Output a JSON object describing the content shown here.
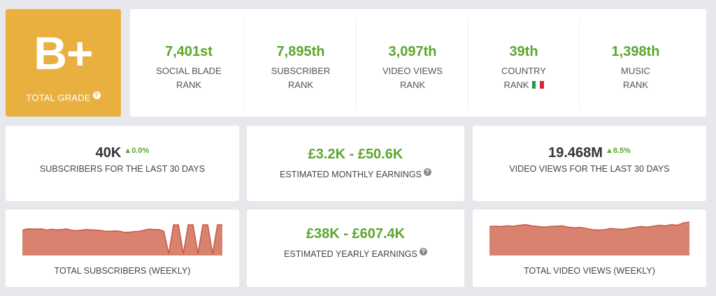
{
  "grade": {
    "letter": "B+",
    "label": "TOTAL GRADE",
    "help": "?"
  },
  "ranks": [
    {
      "value": "7,401st",
      "line1": "SOCIAL BLADE",
      "line2": "RANK"
    },
    {
      "value": "7,895th",
      "line1": "SUBSCRIBER",
      "line2": "RANK"
    },
    {
      "value": "3,097th",
      "line1": "VIDEO VIEWS",
      "line2": "RANK"
    },
    {
      "value": "39th",
      "line1": "COUNTRY",
      "line2": "RANK"
    },
    {
      "value": "1,398th",
      "line1": "MUSIC",
      "line2": "RANK"
    }
  ],
  "flag_colors": [
    "#1f9a48",
    "#ffffff",
    "#ce2b37"
  ],
  "subscribers": {
    "value": "40K",
    "change": "▲0.0%",
    "caption": "SUBSCRIBERS FOR THE LAST 30 DAYS"
  },
  "monthly": {
    "value": "£3.2K - £50.6K",
    "caption": "ESTIMATED MONTHLY EARNINGS",
    "help": "?"
  },
  "views": {
    "value": "19.468M",
    "change": "▲8.5%",
    "caption": "VIDEO VIEWS FOR THE LAST 30 DAYS"
  },
  "yearly": {
    "value": "£38K - £607.4K",
    "caption": "ESTIMATED YEARLY EARNINGS",
    "help": "?"
  },
  "colors": {
    "accent": "#5da62d",
    "grade_bg": "#e9b03f",
    "spark_fill": "#d9826f",
    "spark_line": "#c55a43"
  },
  "chart_data": [
    {
      "type": "area",
      "title": "TOTAL SUBSCRIBERS (WEEKLY)",
      "values": [
        0.82,
        0.86,
        0.86,
        0.85,
        0.86,
        0.82,
        0.85,
        0.83,
        0.84,
        0.86,
        0.82,
        0.8,
        0.82,
        0.84,
        0.83,
        0.82,
        0.81,
        0.78,
        0.78,
        0.79,
        0.78,
        0.74,
        0.75,
        0.77,
        0.78,
        0.82,
        0.85,
        0.84,
        0.84,
        0.78,
        0.02,
        1.0,
        1.0,
        0.02,
        1.0,
        1.0,
        0.02,
        1.0,
        1.0,
        0.02,
        1.0,
        1.0
      ]
    },
    {
      "type": "area",
      "title": "TOTAL VIDEO VIEWS (WEEKLY)",
      "values": [
        0.86,
        0.87,
        0.86,
        0.88,
        0.87,
        0.9,
        0.92,
        0.88,
        0.86,
        0.84,
        0.86,
        0.87,
        0.88,
        0.84,
        0.82,
        0.83,
        0.8,
        0.76,
        0.75,
        0.76,
        0.8,
        0.78,
        0.77,
        0.8,
        0.83,
        0.86,
        0.84,
        0.87,
        0.9,
        0.88,
        0.92,
        0.9,
        0.97,
        1.0
      ]
    }
  ]
}
